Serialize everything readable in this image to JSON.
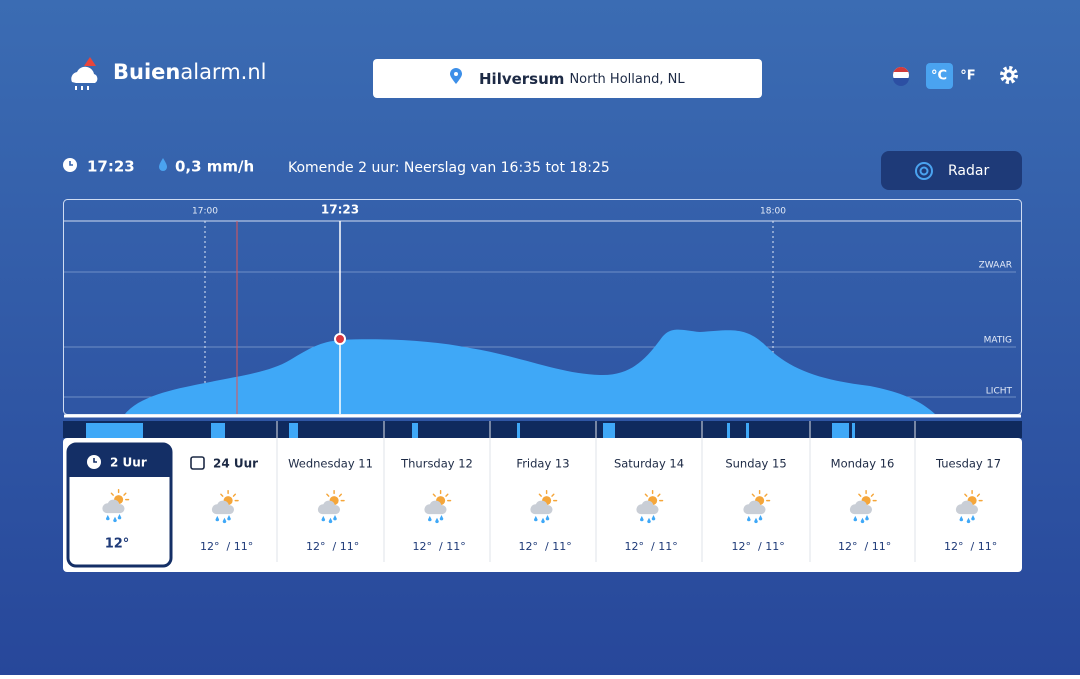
{
  "header": {
    "logo": {
      "bold": "Buien",
      "rest": "alarm.nl"
    },
    "location": {
      "city": "Hilversum",
      "region": "North Holland, NL"
    },
    "units": [
      "°C",
      "°F"
    ]
  },
  "status": {
    "time": "17:23",
    "rain": "0,3 mm/h",
    "forecast": "Komende 2 uur: Neerslag van 16:35 tot 18:25",
    "radar": "Radar"
  },
  "timeline": {
    "times": [
      "17:00",
      "17:23",
      "18:00"
    ],
    "levels": [
      "ZWAAR",
      "MATIG",
      "LICHT"
    ]
  },
  "days": [
    {
      "label": "2 Uur",
      "temp": "12°"
    },
    {
      "label": "24 Uur",
      "high": "12°",
      "low": "/ 11°"
    },
    {
      "label": "Wednesday 11",
      "high": "12°",
      "low": "/ 11°"
    },
    {
      "label": "Thursday 12",
      "high": "12°",
      "low": "/ 11°"
    },
    {
      "label": "Friday 13",
      "high": "12°",
      "low": "/ 11°"
    },
    {
      "label": "Saturday 14",
      "high": "12°",
      "low": "/ 11°"
    },
    {
      "label": "Sunday 15",
      "high": "12°",
      "low": "/ 11°"
    },
    {
      "label": "Monday 16",
      "high": "12°",
      "low": "/ 11°"
    },
    {
      "label": "Tuesday 17",
      "high": "12°",
      "low": "/ 11°"
    }
  ]
}
